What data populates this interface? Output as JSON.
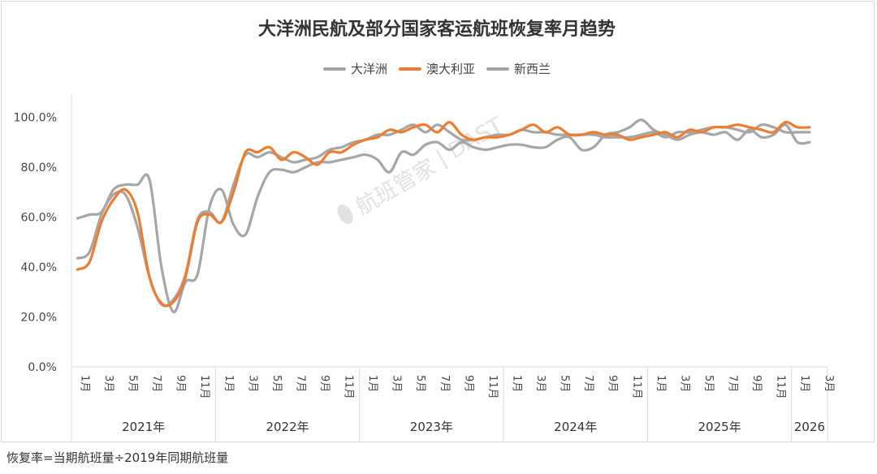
{
  "footnote": "恢复率=当期航班量÷2019年同期航班量",
  "watermark": {
    "brand": "航班管家",
    "sep": "|",
    "suffix": "DAST"
  },
  "chart_data": {
    "type": "line",
    "title": "大洋洲民航及部分国家客运航班恢复率月趋势",
    "xlabel": "",
    "ylabel": "",
    "ylim": [
      0,
      100
    ],
    "y_tick_labels": [
      "0.0%",
      "20.0%",
      "40.0%",
      "60.0%",
      "80.0%",
      "100.0%"
    ],
    "legend_position": "top-center",
    "grid": false,
    "years": [
      {
        "label": "2021年",
        "months": 12
      },
      {
        "label": "2022年",
        "months": 12
      },
      {
        "label": "2023年",
        "months": 12
      },
      {
        "label": "2024年",
        "months": 12
      },
      {
        "label": "2025年",
        "months": 12
      },
      {
        "label": "2026",
        "months": 3
      }
    ],
    "month_tick_labels": [
      "1月",
      "3月",
      "5月",
      "7月",
      "9月",
      "11月"
    ],
    "month_tick_labels_last": [
      "1月",
      "3月"
    ],
    "series": [
      {
        "name": "大洋洲",
        "color": "#a6a6a6",
        "values": [
          43.5,
          46,
          61,
          69,
          69,
          56,
          36,
          25,
          27,
          37,
          59,
          62,
          58,
          73,
          85,
          84,
          86,
          84,
          82,
          83,
          84,
          87,
          88,
          90,
          91,
          93,
          93,
          95,
          97,
          94,
          97,
          94,
          91,
          91,
          92,
          93,
          93,
          95,
          94,
          94,
          93,
          93,
          93,
          93,
          92,
          92,
          92,
          93,
          94,
          92,
          94,
          94,
          95,
          96,
          96,
          95,
          94,
          97,
          96,
          94,
          94,
          94
        ]
      },
      {
        "name": "澳大利亚",
        "color": "#ed7d31",
        "values": [
          39,
          42,
          58,
          67,
          71,
          62,
          36,
          25.5,
          26,
          36,
          58,
          61,
          58,
          70,
          86,
          86,
          88,
          83,
          86,
          84,
          81,
          86,
          86,
          89,
          91,
          92,
          95,
          94,
          96,
          97,
          94,
          98,
          93,
          91,
          92,
          92,
          93,
          95,
          97,
          94,
          96,
          93,
          93,
          94,
          93,
          93,
          91,
          92,
          93,
          94,
          92,
          95,
          94,
          96,
          96,
          97,
          96,
          95,
          94,
          98,
          96,
          96
        ]
      },
      {
        "name": "新西兰",
        "color": "#a6a6a6",
        "values": [
          59.5,
          61,
          62,
          71,
          73,
          73,
          75,
          40,
          22,
          34,
          37,
          64,
          71,
          57,
          53,
          68,
          78,
          79,
          78,
          80,
          82,
          82,
          83,
          84,
          85,
          83,
          78,
          86,
          85,
          89,
          90,
          87,
          90,
          88,
          87,
          88,
          89,
          89,
          88,
          88,
          91,
          92,
          87,
          88,
          93,
          94,
          96,
          99,
          95,
          93,
          91,
          93,
          94,
          93,
          94,
          91,
          95,
          92,
          93,
          97,
          90,
          90
        ]
      }
    ]
  }
}
